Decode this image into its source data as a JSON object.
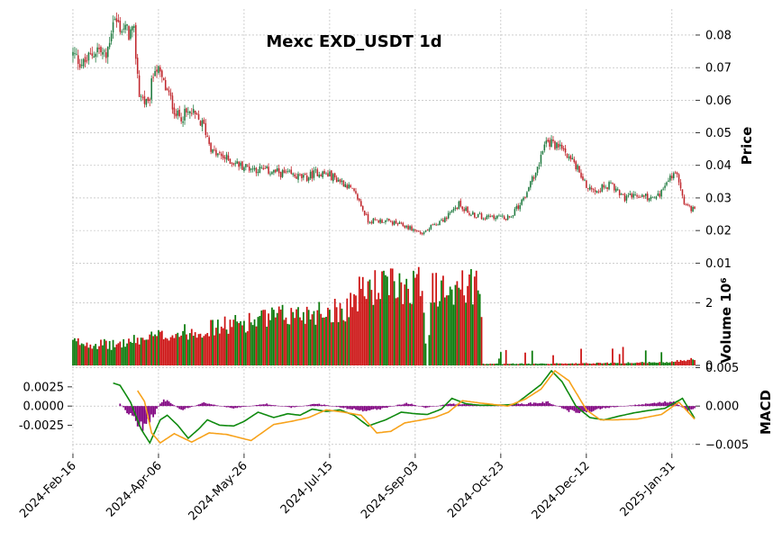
{
  "chart_data": {
    "type": "candlestick",
    "title": "Mexc EXD_USDT 1d",
    "x_tick_labels": [
      "2024-Feb-16",
      "2024-Apr-06",
      "2024-May-26",
      "2024-Jul-15",
      "2024-Sep-03",
      "2024-Oct-23",
      "2024-Dec-12",
      "2025-Jan-31"
    ],
    "x_range": [
      "2024-02-16",
      "2025-02-06"
    ],
    "grid": true,
    "colors": {
      "up": "#1f7a3f",
      "down": "#c0272d",
      "vol_up": "#0a7a0a",
      "vol_down": "#cc1111",
      "macd_line": "#0f8a0f",
      "signal_line": "#f7a21b",
      "histogram": "#800080"
    },
    "price_panel": {
      "ylabel": "Price",
      "ylim": [
        0.0065,
        0.088
      ],
      "ticks": [
        0.01,
        0.02,
        0.03,
        0.04,
        0.05,
        0.06,
        0.07,
        0.08
      ],
      "tick_labels": [
        "0.01",
        "0.02",
        "0.03",
        "0.04",
        "0.05",
        "0.06",
        "0.07",
        "0.08"
      ],
      "close_trend": [
        [
          "2024-02-16",
          0.074
        ],
        [
          "2024-02-22",
          0.071
        ],
        [
          "2024-03-01",
          0.076
        ],
        [
          "2024-03-06",
          0.073
        ],
        [
          "2024-03-10",
          0.085
        ],
        [
          "2024-03-15",
          0.082
        ],
        [
          "2024-03-22",
          0.08
        ],
        [
          "2024-03-25",
          0.062
        ],
        [
          "2024-03-30",
          0.058
        ],
        [
          "2024-04-03",
          0.071
        ],
        [
          "2024-04-08",
          0.065
        ],
        [
          "2024-04-16",
          0.055
        ],
        [
          "2024-04-24",
          0.056
        ],
        [
          "2024-05-01",
          0.052
        ],
        [
          "2024-05-06",
          0.044
        ],
        [
          "2024-05-14",
          0.042
        ],
        [
          "2024-05-22",
          0.04
        ],
        [
          "2024-05-30",
          0.039
        ],
        [
          "2024-06-10",
          0.038
        ],
        [
          "2024-06-20",
          0.037
        ],
        [
          "2024-06-28",
          0.036
        ],
        [
          "2024-07-05",
          0.038
        ],
        [
          "2024-07-12",
          0.037
        ],
        [
          "2024-07-22",
          0.034
        ],
        [
          "2024-07-28",
          0.03
        ],
        [
          "2024-08-03",
          0.023
        ],
        [
          "2024-08-12",
          0.023
        ],
        [
          "2024-08-20",
          0.022
        ],
        [
          "2024-08-26",
          0.021
        ],
        [
          "2024-09-03",
          0.019
        ],
        [
          "2024-09-10",
          0.022
        ],
        [
          "2024-09-17",
          0.024
        ],
        [
          "2024-09-24",
          0.028
        ],
        [
          "2024-10-01",
          0.025
        ],
        [
          "2024-10-10",
          0.024
        ],
        [
          "2024-10-17",
          0.024
        ],
        [
          "2024-10-23",
          0.024
        ],
        [
          "2024-10-29",
          0.028
        ],
        [
          "2024-11-04",
          0.034
        ],
        [
          "2024-11-08",
          0.04
        ],
        [
          "2024-11-12",
          0.046
        ],
        [
          "2024-11-16",
          0.047
        ],
        [
          "2024-11-25",
          0.044
        ],
        [
          "2024-12-02",
          0.038
        ],
        [
          "2024-12-07",
          0.033
        ],
        [
          "2024-12-14",
          0.033
        ],
        [
          "2024-12-20",
          0.034
        ],
        [
          "2024-12-28",
          0.03
        ],
        [
          "2025-01-06",
          0.031
        ],
        [
          "2025-01-12",
          0.03
        ],
        [
          "2025-01-17",
          0.031
        ],
        [
          "2025-01-24",
          0.037
        ],
        [
          "2025-01-28",
          0.036
        ],
        [
          "2025-01-31",
          0.028
        ],
        [
          "2025-02-06",
          0.026
        ]
      ]
    },
    "volume_panel": {
      "ylabel": "Volume  10⁶",
      "ylim": [
        0,
        2.9
      ],
      "ticks": [
        0,
        2
      ],
      "tick_labels": [
        "0",
        "2"
      ],
      "level_trend": [
        [
          "2024-02-16",
          0.75
        ],
        [
          "2024-03-10",
          0.65
        ],
        [
          "2024-04-01",
          0.9
        ],
        [
          "2024-05-01",
          1.15
        ],
        [
          "2024-06-01",
          1.45
        ],
        [
          "2024-07-01",
          1.7
        ],
        [
          "2024-07-20",
          1.8
        ],
        [
          "2024-08-02",
          2.5
        ],
        [
          "2024-08-24",
          2.55
        ],
        [
          "2024-09-03",
          2.6
        ],
        [
          "2024-09-06",
          0
        ],
        [
          "2024-09-09",
          2.5
        ],
        [
          "2024-10-06",
          2.5
        ],
        [
          "2024-10-08",
          0.05
        ],
        [
          "2024-11-28",
          0.06
        ],
        [
          "2025-01-20",
          0.1
        ],
        [
          "2025-02-06",
          0.2
        ]
      ]
    },
    "macd_panel": {
      "ylabel": "MACD",
      "ylim": [
        -0.0062,
        0.0053
      ],
      "left_ticks": [
        -0.0025,
        0,
        0.0025
      ],
      "left_tick_labels": [
        "-0.0025",
        "0.0000",
        "0.0025"
      ],
      "right_ticks": [
        -0.005,
        0,
        0.005
      ],
      "right_tick_labels": [
        "−0.005",
        "0.000",
        "0.005"
      ],
      "series": [
        {
          "line": "macd",
          "points": [
            [
              "2024-03-10",
              0.003
            ],
            [
              "2024-03-14",
              0.0027
            ],
            [
              "2024-03-20",
              0.0005
            ],
            [
              "2024-03-26",
              -0.003
            ],
            [
              "2024-03-31",
              -0.0048
            ],
            [
              "2024-04-06",
              -0.0018
            ],
            [
              "2024-04-10",
              -0.0012
            ],
            [
              "2024-04-16",
              -0.0025
            ],
            [
              "2024-04-22",
              -0.0042
            ],
            [
              "2024-04-28",
              -0.003
            ],
            [
              "2024-05-03",
              -0.0018
            ],
            [
              "2024-05-10",
              -0.0025
            ],
            [
              "2024-05-18",
              -0.0026
            ],
            [
              "2024-05-24",
              -0.002
            ],
            [
              "2024-06-01",
              -0.0008
            ],
            [
              "2024-06-10",
              -0.0015
            ],
            [
              "2024-06-18",
              -0.001
            ],
            [
              "2024-06-25",
              -0.0012
            ],
            [
              "2024-07-02",
              -0.0004
            ],
            [
              "2024-07-10",
              -0.0007
            ],
            [
              "2024-07-18",
              -0.0005
            ],
            [
              "2024-07-26",
              -0.0012
            ],
            [
              "2024-08-03",
              -0.0026
            ],
            [
              "2024-08-13",
              -0.0018
            ],
            [
              "2024-08-22",
              -0.0008
            ],
            [
              "2024-08-30",
              -0.001
            ],
            [
              "2024-09-06",
              -0.0011
            ],
            [
              "2024-09-14",
              -0.0004
            ],
            [
              "2024-09-20",
              0.001
            ],
            [
              "2024-09-28",
              0.0003
            ],
            [
              "2024-10-06",
              0.0001
            ],
            [
              "2024-10-16",
              0.0001
            ],
            [
              "2024-10-26",
              0.0002
            ],
            [
              "2024-11-02",
              0.0014
            ],
            [
              "2024-11-10",
              0.0028
            ],
            [
              "2024-11-16",
              0.0046
            ],
            [
              "2024-11-22",
              0.0032
            ],
            [
              "2024-11-30",
              0
            ],
            [
              "2024-12-08",
              -0.0015
            ],
            [
              "2024-12-16",
              -0.0018
            ],
            [
              "2024-12-25",
              -0.0013
            ],
            [
              "2025-01-02",
              -0.0009
            ],
            [
              "2025-01-10",
              -0.0006
            ],
            [
              "2025-01-20",
              -0.0003
            ],
            [
              "2025-01-30",
              0.001
            ],
            [
              "2025-02-06",
              -0.0016
            ]
          ]
        },
        {
          "line": "signal",
          "points": [
            [
              "2024-03-24",
              0.002
            ],
            [
              "2024-03-28",
              0.0006
            ],
            [
              "2024-04-01",
              -0.0035
            ],
            [
              "2024-04-06",
              -0.0048
            ],
            [
              "2024-04-14",
              -0.0036
            ],
            [
              "2024-04-24",
              -0.0047
            ],
            [
              "2024-05-04",
              -0.0035
            ],
            [
              "2024-05-14",
              -0.0037
            ],
            [
              "2024-05-28",
              -0.0045
            ],
            [
              "2024-06-10",
              -0.0024
            ],
            [
              "2024-06-20",
              -0.002
            ],
            [
              "2024-06-30",
              -0.0015
            ],
            [
              "2024-07-10",
              -0.0005
            ],
            [
              "2024-07-20",
              -0.0008
            ],
            [
              "2024-07-30",
              -0.0012
            ],
            [
              "2024-08-08",
              -0.0035
            ],
            [
              "2024-08-16",
              -0.0033
            ],
            [
              "2024-08-24",
              -0.0022
            ],
            [
              "2024-09-03",
              -0.0018
            ],
            [
              "2024-09-10",
              -0.0015
            ],
            [
              "2024-09-18",
              -0.0008
            ],
            [
              "2024-09-26",
              0.0007
            ],
            [
              "2024-10-06",
              0.0004
            ],
            [
              "2024-10-22",
              0
            ],
            [
              "2024-11-01",
              0.0009
            ],
            [
              "2024-11-10",
              0.0022
            ],
            [
              "2024-11-18",
              0.0046
            ],
            [
              "2024-11-26",
              0.0033
            ],
            [
              "2024-12-06",
              -0.0005
            ],
            [
              "2024-12-14",
              -0.0018
            ],
            [
              "2024-12-22",
              -0.0018
            ],
            [
              "2025-01-04",
              -0.0017
            ],
            [
              "2025-01-18",
              -0.0011
            ],
            [
              "2025-01-28",
              0.0005
            ],
            [
              "2025-02-06",
              -0.0017
            ]
          ]
        }
      ],
      "histogram_trend": [
        [
          "2024-03-14",
          0.0003
        ],
        [
          "2024-03-22",
          -0.0018
        ],
        [
          "2024-03-27",
          -0.0028
        ],
        [
          "2024-04-02",
          -0.0012
        ],
        [
          "2024-04-08",
          0.001
        ],
        [
          "2024-04-18",
          -0.0005
        ],
        [
          "2024-05-01",
          0.0004
        ],
        [
          "2024-05-18",
          -0.0003
        ],
        [
          "2024-06-05",
          0.0003
        ],
        [
          "2024-06-20",
          -0.0002
        ],
        [
          "2024-07-05",
          0.0003
        ],
        [
          "2024-07-22",
          -0.0003
        ],
        [
          "2024-08-02",
          -0.0006
        ],
        [
          "2024-08-10",
          -0.0004
        ],
        [
          "2024-08-25",
          0.0004
        ],
        [
          "2024-09-05",
          -0.0002
        ],
        [
          "2024-09-20",
          0.0003
        ],
        [
          "2024-10-10",
          0.0001
        ],
        [
          "2024-10-25",
          0.0002
        ],
        [
          "2024-11-06",
          0.0004
        ],
        [
          "2024-11-14",
          0.0005
        ],
        [
          "2024-11-26",
          -0.0006
        ],
        [
          "2024-12-05",
          -0.0008
        ],
        [
          "2024-12-15",
          -0.0003
        ],
        [
          "2025-01-01",
          0.0001
        ],
        [
          "2025-01-25",
          0.0006
        ],
        [
          "2025-02-02",
          -0.0006
        ],
        [
          "2025-02-06",
          -0.0003
        ]
      ]
    }
  }
}
